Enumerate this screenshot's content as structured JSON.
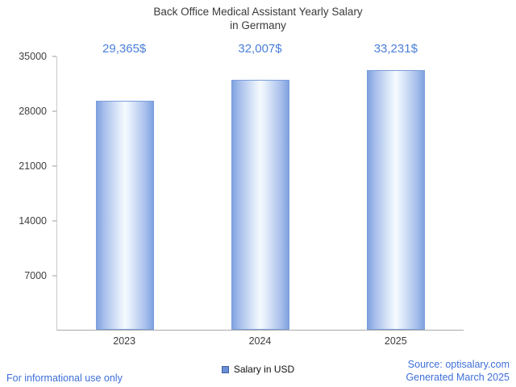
{
  "title": {
    "line1": "Back Office Medical Assistant Yearly Salary",
    "line2": "in Germany"
  },
  "chart_data": {
    "type": "bar",
    "title": "Back Office Medical Assistant Yearly Salary in Germany",
    "categories": [
      "2023",
      "2024",
      "2025"
    ],
    "values": [
      29365,
      32007,
      33231
    ],
    "value_labels": [
      "29,365$",
      "32,007$",
      "33,231$"
    ],
    "xlabel": "",
    "ylabel": "",
    "ylim": [
      0,
      35000
    ],
    "yticks": [
      7000,
      14000,
      21000,
      28000,
      35000
    ],
    "grid": false,
    "legend": [
      "Salary in USD"
    ],
    "legend_position": "bottom-center"
  },
  "legend": {
    "label": "Salary in USD"
  },
  "footer": {
    "disclaimer": "For informational use only",
    "source": "Source: optisalary.com",
    "generated": "Generated March 2025"
  },
  "colors": {
    "accent_text": "#4a7fd8",
    "title_text": "#3a3a3a",
    "axis_line": "#bdbdbd",
    "bar_border": "#7b9ddb",
    "bar_edge": "#7fa2e0",
    "bar_center": "#f6faff",
    "legend_square": "#698fd6"
  }
}
